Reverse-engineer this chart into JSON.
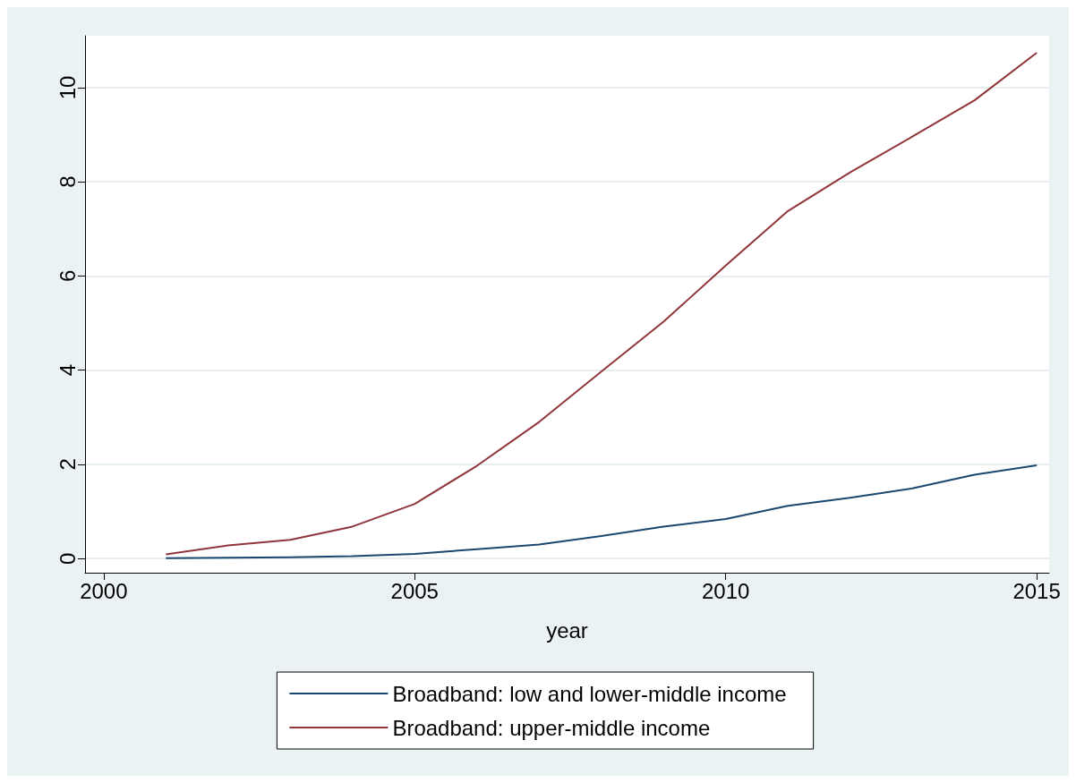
{
  "chart_data": {
    "type": "line",
    "xlabel": "year",
    "x": [
      2001,
      2002,
      2003,
      2004,
      2005,
      2006,
      2007,
      2008,
      2009,
      2010,
      2011,
      2012,
      2013,
      2014,
      2015
    ],
    "series": [
      {
        "name": "Broadband: low and lower-middle income",
        "color": "#1a476f",
        "values": [
          0.01,
          0.02,
          0.03,
          0.05,
          0.1,
          0.2,
          0.3,
          0.48,
          0.68,
          0.84,
          1.12,
          1.29,
          1.49,
          1.78,
          1.98
        ]
      },
      {
        "name": "Broadband: upper-middle income",
        "color": "#90353b",
        "values": [
          0.09,
          0.28,
          0.4,
          0.68,
          1.16,
          1.97,
          2.9,
          3.97,
          5.03,
          6.22,
          7.38,
          8.2,
          8.96,
          9.73,
          10.74
        ]
      }
    ],
    "xlim": [
      1999.7,
      2015.2
    ],
    "xticks": [
      2000,
      2005,
      2010,
      2015
    ],
    "ylim": [
      -0.3,
      11.1
    ],
    "yticks": [
      0,
      2,
      4,
      6,
      8,
      10
    ],
    "grid": "y",
    "legend": "bottom",
    "marker": "none",
    "line_style": "solid"
  }
}
